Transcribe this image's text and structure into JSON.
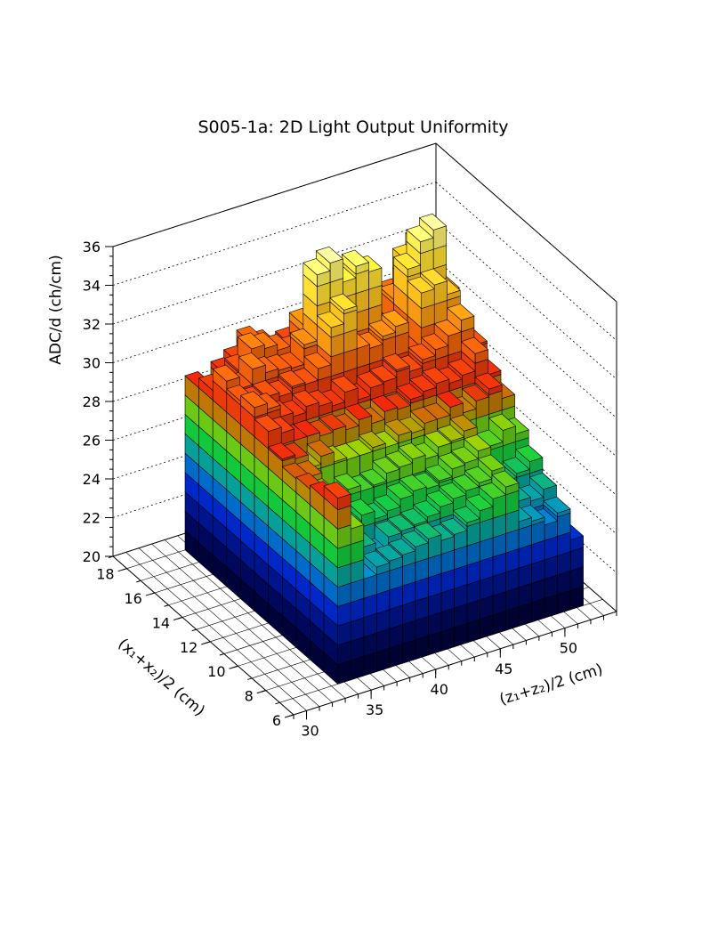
{
  "chart_data": {
    "type": "3d-bar",
    "title": "S005-1a: 2D Light Output Uniformity",
    "xlabel": "(z₁+z₂)/2 (cm)",
    "ylabel": "(x₁+x₂)/2 (cm)",
    "zlabel": "ADC/d (ch/cm)",
    "x_ticks": [
      "30",
      "35",
      "40",
      "45",
      "50"
    ],
    "y_ticks": [
      "6",
      "8",
      "10",
      "12",
      "14",
      "16",
      "18"
    ],
    "z_ticks": [
      "20",
      "22",
      "24",
      "26",
      "28",
      "30",
      "32",
      "34",
      "36"
    ],
    "xlim": [
      29,
      54
    ],
    "ylim": [
      6,
      19
    ],
    "zlim": [
      20,
      36
    ],
    "grid": true,
    "legend": "none",
    "x_bins": [
      34,
      35,
      36,
      37,
      38,
      39,
      40,
      41,
      42,
      43,
      44,
      45,
      46,
      47,
      48,
      49,
      50,
      51,
      52
    ],
    "y_bins": [
      7.5,
      8.5,
      9.5,
      10.5,
      11.5,
      12.5,
      13.5,
      14.5,
      15.5,
      16.5,
      17.5
    ],
    "values": [
      [
        29.6,
        29.0,
        28.8,
        28.7,
        29.1,
        29.9,
        30.5,
        30.2,
        30.6,
        29.5,
        29.0
      ],
      [
        27.8,
        28.2,
        28.3,
        28.6,
        28.9,
        29.6,
        30.2,
        29.9,
        30.0,
        29.2,
        28.0
      ],
      [
        25.0,
        25.4,
        26.0,
        27.4,
        28.2,
        29.0,
        29.6,
        30.0,
        30.8,
        30.1,
        29.3
      ],
      [
        25.4,
        25.8,
        26.3,
        27.0,
        28.6,
        29.0,
        29.4,
        29.8,
        30.4,
        31.0,
        29.7
      ],
      [
        25.5,
        25.2,
        26.6,
        27.3,
        28.1,
        28.8,
        29.7,
        30.1,
        30.3,
        30.8,
        30.5
      ],
      [
        25.6,
        25.9,
        26.2,
        27.0,
        28.0,
        28.9,
        29.5,
        30.0,
        30.2,
        30.5,
        30.1
      ],
      [
        25.8,
        26.0,
        26.4,
        27.1,
        28.0,
        28.7,
        29.3,
        30.6,
        31.2,
        30.2,
        29.4
      ],
      [
        26.0,
        26.1,
        26.8,
        27.5,
        28.2,
        29.0,
        29.8,
        32.5,
        34.6,
        31.4,
        29.8
      ],
      [
        25.7,
        26.3,
        27.0,
        27.6,
        28.0,
        28.6,
        29.2,
        33.2,
        35.0,
        31.0,
        29.7
      ],
      [
        25.8,
        26.6,
        26.9,
        27.8,
        28.4,
        29.0,
        29.6,
        31.0,
        33.8,
        30.6,
        29.4
      ],
      [
        26.2,
        26.8,
        27.1,
        27.6,
        28.3,
        28.9,
        29.7,
        30.8,
        34.4,
        30.5,
        29.2
      ],
      [
        26.6,
        27.0,
        27.5,
        28.0,
        28.6,
        29.2,
        30.1,
        31.2,
        33.9,
        30.4,
        29.1
      ],
      [
        27.0,
        27.2,
        27.6,
        28.1,
        28.6,
        29.4,
        29.8,
        31.5,
        30.6,
        29.9,
        28.8
      ],
      [
        27.4,
        27.6,
        28.0,
        28.4,
        29.0,
        29.6,
        30.2,
        30.0,
        30.4,
        29.6,
        28.5
      ],
      [
        25.4,
        25.8,
        26.3,
        27.0,
        28.5,
        29.4,
        30.5,
        32.8,
        33.4,
        31.2,
        29.4
      ],
      [
        25.2,
        25.6,
        26.0,
        27.2,
        28.9,
        29.6,
        31.0,
        33.0,
        34.6,
        33.0,
        30.6
      ],
      [
        24.8,
        25.4,
        26.2,
        27.8,
        29.3,
        30.5,
        31.6,
        32.3,
        35.0,
        33.6,
        30.5
      ],
      [
        25.2,
        25.8,
        26.6,
        27.4,
        28.6,
        29.2,
        30.1,
        30.8,
        31.6,
        30.4,
        29.5
      ],
      [
        23.6,
        24.2,
        25.0,
        25.8,
        26.6,
        27.4,
        28.2,
        28.8,
        29.2,
        28.6,
        27.9
      ]
    ]
  }
}
